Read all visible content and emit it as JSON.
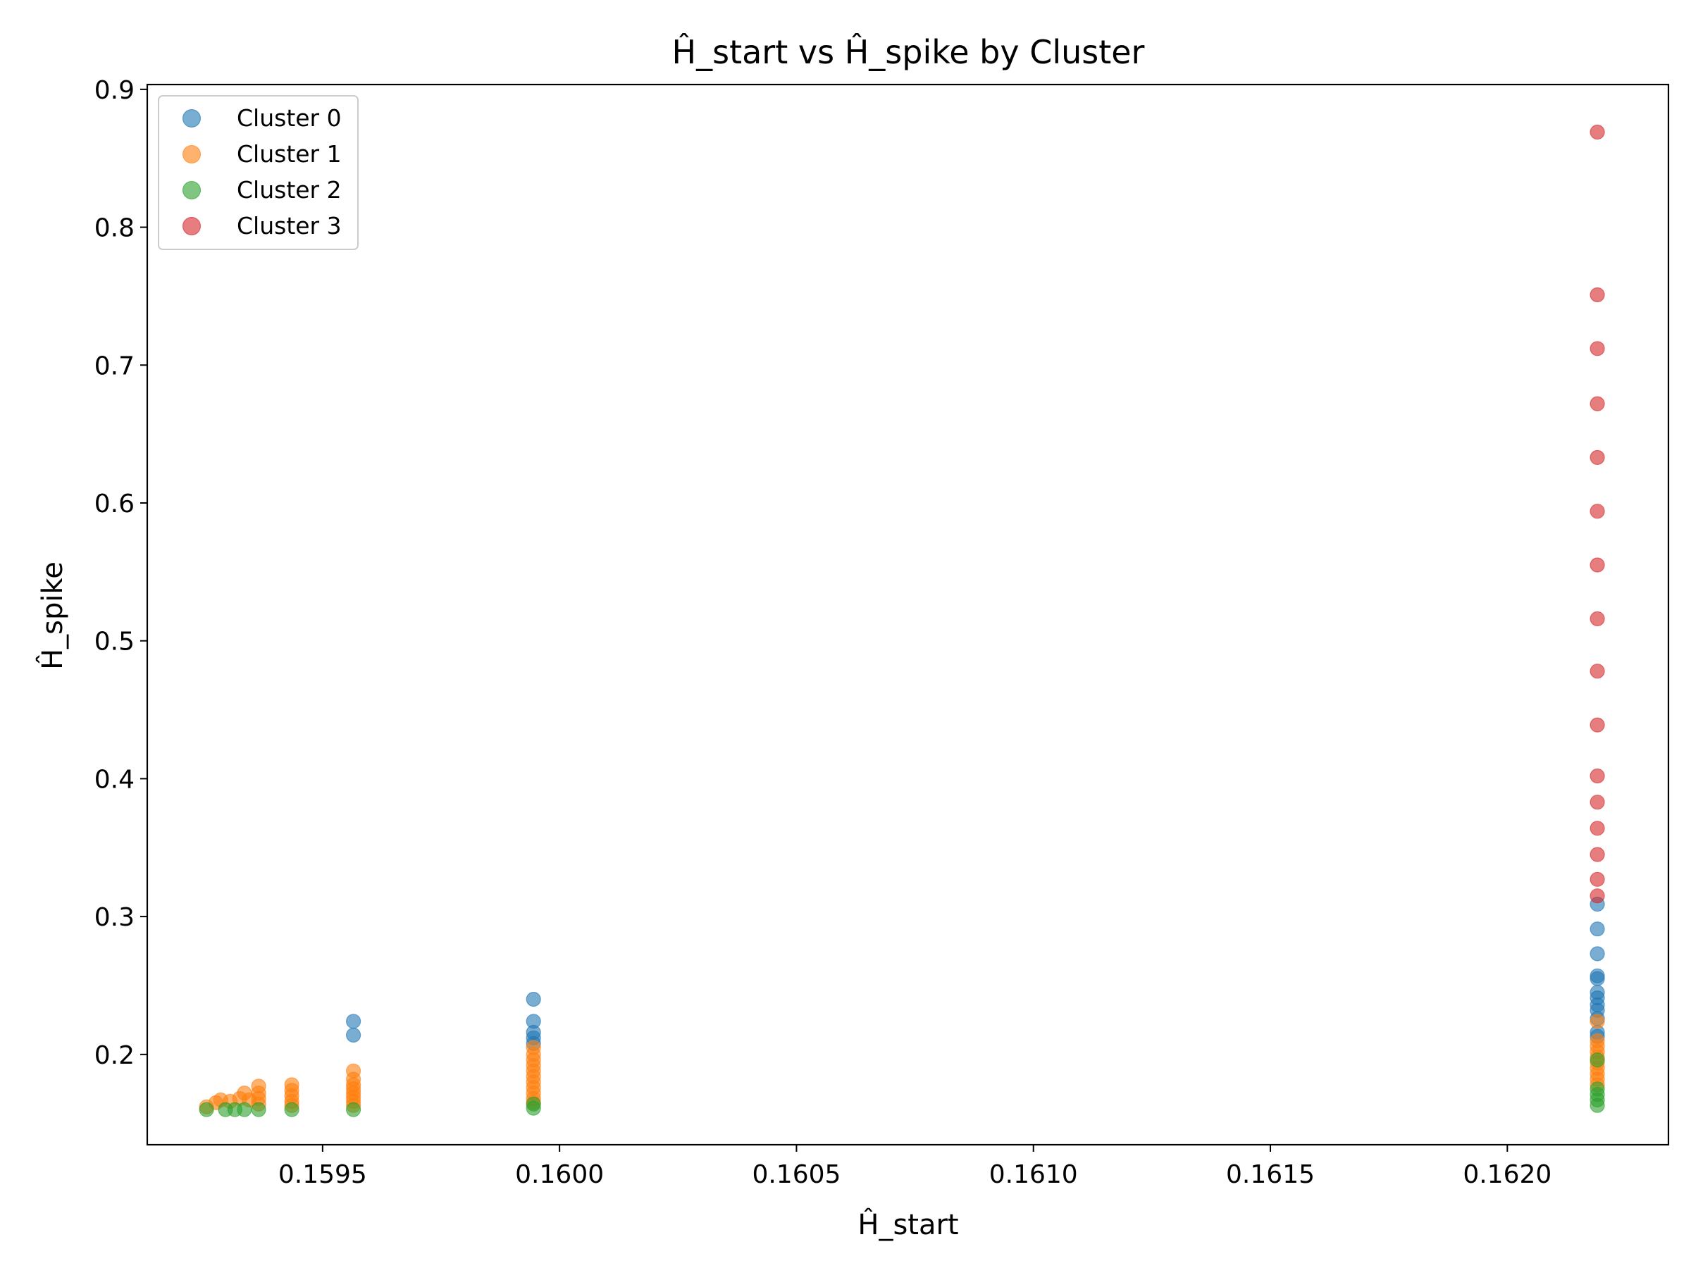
{
  "chart_data": {
    "type": "scatter",
    "title": "Ĥ_start vs Ĥ_spike by Cluster",
    "xlabel": "Ĥ_start",
    "ylabel": "Ĥ_spike",
    "xlim": [
      0.15913,
      0.16234
    ],
    "ylim": [
      0.1345,
      0.9035
    ],
    "xticks": [
      {
        "value": 0.1595,
        "label": "0.1595"
      },
      {
        "value": 0.16,
        "label": "0.1600"
      },
      {
        "value": 0.1605,
        "label": "0.1605"
      },
      {
        "value": 0.161,
        "label": "0.1610"
      },
      {
        "value": 0.1615,
        "label": "0.1615"
      },
      {
        "value": 0.162,
        "label": "0.1620"
      }
    ],
    "yticks": [
      {
        "value": 0.2,
        "label": "0.2"
      },
      {
        "value": 0.3,
        "label": "0.3"
      },
      {
        "value": 0.4,
        "label": "0.4"
      },
      {
        "value": 0.5,
        "label": "0.5"
      },
      {
        "value": 0.6,
        "label": "0.6"
      },
      {
        "value": 0.7,
        "label": "0.7"
      },
      {
        "value": 0.8,
        "label": "0.8"
      },
      {
        "value": 0.9,
        "label": "0.9"
      }
    ],
    "grid": false,
    "legend_position": "upper-left",
    "series": [
      {
        "name": "Cluster 0",
        "color": "#1f77b4",
        "points": [
          [
            0.159565,
            0.224
          ],
          [
            0.159565,
            0.214
          ],
          [
            0.159945,
            0.24
          ],
          [
            0.159945,
            0.224
          ],
          [
            0.159945,
            0.216
          ],
          [
            0.159945,
            0.212
          ],
          [
            0.159945,
            0.208
          ],
          [
            0.16219,
            0.309
          ],
          [
            0.16219,
            0.291
          ],
          [
            0.16219,
            0.273
          ],
          [
            0.16219,
            0.257
          ],
          [
            0.16219,
            0.255
          ],
          [
            0.16219,
            0.245
          ],
          [
            0.16219,
            0.241
          ],
          [
            0.16219,
            0.236
          ],
          [
            0.16219,
            0.232
          ],
          [
            0.16219,
            0.226
          ],
          [
            0.16219,
            0.216
          ],
          [
            0.16219,
            0.213
          ]
        ]
      },
      {
        "name": "Cluster 1",
        "color": "#ff7f0e",
        "points": [
          [
            0.159255,
            0.162
          ],
          [
            0.159275,
            0.165
          ],
          [
            0.159285,
            0.167
          ],
          [
            0.159305,
            0.166
          ],
          [
            0.159325,
            0.168
          ],
          [
            0.159335,
            0.172
          ],
          [
            0.159345,
            0.167
          ],
          [
            0.159365,
            0.177
          ],
          [
            0.159365,
            0.172
          ],
          [
            0.159365,
            0.168
          ],
          [
            0.159365,
            0.164
          ],
          [
            0.159435,
            0.178
          ],
          [
            0.159435,
            0.174
          ],
          [
            0.159435,
            0.17
          ],
          [
            0.159435,
            0.166
          ],
          [
            0.159435,
            0.163
          ],
          [
            0.159565,
            0.188
          ],
          [
            0.159565,
            0.182
          ],
          [
            0.159565,
            0.178
          ],
          [
            0.159565,
            0.175
          ],
          [
            0.159565,
            0.172
          ],
          [
            0.159565,
            0.169
          ],
          [
            0.159565,
            0.166
          ],
          [
            0.159565,
            0.163
          ],
          [
            0.159945,
            0.205
          ],
          [
            0.159945,
            0.2
          ],
          [
            0.159945,
            0.196
          ],
          [
            0.159945,
            0.192
          ],
          [
            0.159945,
            0.188
          ],
          [
            0.159945,
            0.184
          ],
          [
            0.159945,
            0.18
          ],
          [
            0.159945,
            0.176
          ],
          [
            0.159945,
            0.172
          ],
          [
            0.159945,
            0.168
          ],
          [
            0.159945,
            0.165
          ],
          [
            0.16219,
            0.224
          ],
          [
            0.16219,
            0.21
          ],
          [
            0.16219,
            0.206
          ],
          [
            0.16219,
            0.202
          ],
          [
            0.16219,
            0.198
          ],
          [
            0.16219,
            0.194
          ],
          [
            0.16219,
            0.19
          ],
          [
            0.16219,
            0.186
          ],
          [
            0.16219,
            0.182
          ],
          [
            0.16219,
            0.178
          ]
        ]
      },
      {
        "name": "Cluster 2",
        "color": "#2ca02c",
        "points": [
          [
            0.159255,
            0.16
          ],
          [
            0.159295,
            0.16
          ],
          [
            0.159315,
            0.16
          ],
          [
            0.159335,
            0.16
          ],
          [
            0.159365,
            0.16
          ],
          [
            0.159435,
            0.16
          ],
          [
            0.159565,
            0.16
          ],
          [
            0.159945,
            0.161
          ],
          [
            0.159945,
            0.164
          ],
          [
            0.16219,
            0.196
          ],
          [
            0.16219,
            0.175
          ],
          [
            0.16219,
            0.171
          ],
          [
            0.16219,
            0.167
          ],
          [
            0.16219,
            0.163
          ]
        ]
      },
      {
        "name": "Cluster 3",
        "color": "#d62728",
        "points": [
          [
            0.16219,
            0.869
          ],
          [
            0.16219,
            0.751
          ],
          [
            0.16219,
            0.712
          ],
          [
            0.16219,
            0.672
          ],
          [
            0.16219,
            0.633
          ],
          [
            0.16219,
            0.594
          ],
          [
            0.16219,
            0.555
          ],
          [
            0.16219,
            0.516
          ],
          [
            0.16219,
            0.478
          ],
          [
            0.16219,
            0.439
          ],
          [
            0.16219,
            0.402
          ],
          [
            0.16219,
            0.383
          ],
          [
            0.16219,
            0.364
          ],
          [
            0.16219,
            0.345
          ],
          [
            0.16219,
            0.327
          ],
          [
            0.16219,
            0.315
          ]
        ]
      }
    ]
  }
}
